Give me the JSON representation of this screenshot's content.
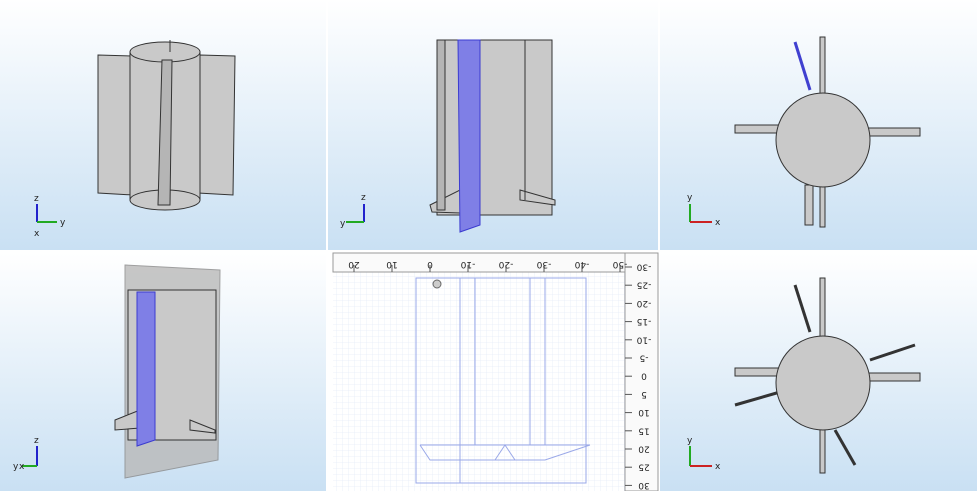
{
  "viewports": [
    {
      "axes": [
        "z",
        "y",
        "x"
      ]
    },
    {
      "axes": [
        "z",
        "y"
      ]
    },
    {
      "axes": [
        "y",
        "x"
      ]
    },
    {
      "axes": [
        "z",
        "y",
        "x"
      ]
    },
    {
      "ruler": {
        "top": [
          "20",
          "10",
          "0",
          "-10",
          "-20",
          "-30",
          "-40",
          "-50"
        ],
        "right": [
          "-30",
          "-25",
          "-20",
          "-15",
          "-10",
          "-5",
          "0",
          "5",
          "10",
          "15",
          "20",
          "25",
          "30"
        ]
      }
    },
    {
      "axes": [
        "y",
        "x"
      ]
    }
  ]
}
